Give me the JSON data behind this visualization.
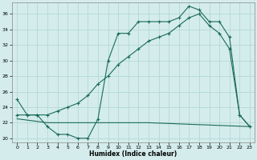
{
  "title": "",
  "xlabel": "Humidex (Indice chaleur)",
  "bg_color": "#d4ecec",
  "grid_color": "#aed4d4",
  "line_color": "#1a6b5a",
  "xlim": [
    -0.5,
    23.5
  ],
  "ylim": [
    19.5,
    37.5
  ],
  "xticks": [
    0,
    1,
    2,
    3,
    4,
    5,
    6,
    7,
    8,
    9,
    10,
    11,
    12,
    13,
    14,
    15,
    16,
    17,
    18,
    19,
    20,
    21,
    22,
    23
  ],
  "yticks": [
    20,
    22,
    24,
    26,
    28,
    30,
    32,
    34,
    36
  ],
  "line1_x": [
    0,
    1,
    2,
    3,
    4,
    5,
    6,
    7,
    8,
    9,
    10,
    11,
    12,
    13,
    14,
    15,
    16,
    17,
    18,
    19,
    20,
    21,
    22,
    23
  ],
  "line1_y": [
    25.0,
    23.0,
    23.0,
    21.5,
    20.5,
    20.5,
    20.0,
    20.0,
    22.5,
    30.0,
    33.5,
    33.5,
    35.0,
    35.0,
    35.0,
    35.0,
    35.5,
    37.0,
    36.5,
    35.0,
    35.0,
    33.0,
    23.0,
    21.5
  ],
  "line2_x": [
    0,
    3,
    13,
    23
  ],
  "line2_y": [
    22.5,
    22.0,
    22.0,
    21.5
  ],
  "line3_x": [
    0,
    1,
    2,
    3,
    4,
    5,
    6,
    7,
    8,
    9,
    10,
    11,
    12,
    13,
    14,
    15,
    16,
    17,
    18,
    19,
    20,
    21,
    22,
    23
  ],
  "line3_y": [
    23.0,
    23.0,
    23.0,
    23.0,
    23.5,
    24.0,
    24.5,
    25.5,
    27.0,
    28.0,
    29.5,
    30.5,
    31.5,
    32.5,
    33.0,
    33.5,
    34.5,
    35.5,
    36.0,
    34.5,
    33.5,
    31.5,
    23.0,
    21.5
  ]
}
